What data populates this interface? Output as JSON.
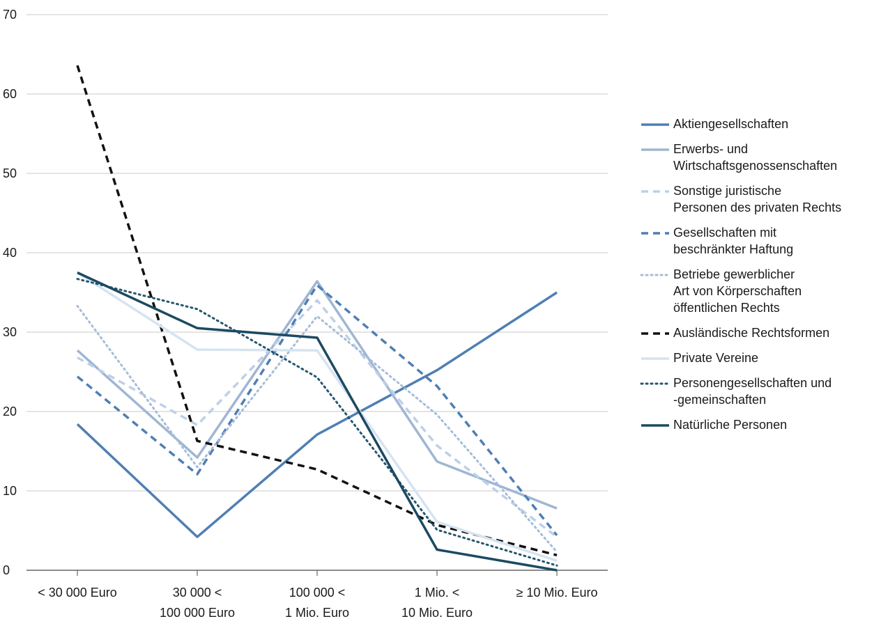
{
  "chart_data": {
    "type": "line",
    "title": "",
    "xlabel": "",
    "ylabel": "",
    "ylim": [
      0,
      70
    ],
    "yticks": [
      0,
      10,
      20,
      30,
      40,
      50,
      60,
      70
    ],
    "grid": true,
    "legend_position": "right",
    "categories": [
      "< 30 000 Euro",
      "30 000 <\n100 000 Euro",
      "100 000 <\n1 Mio. Euro",
      "1 Mio. <\n10 Mio. Euro",
      "≥ 10 Mio. Euro"
    ],
    "series": [
      {
        "name": "Aktiengesellschaften",
        "values": [
          18.4,
          4.2,
          17.1,
          25.2,
          35.0
        ],
        "color": "#4f7fb3",
        "dash": "solid",
        "width": 3.5
      },
      {
        "name": "Erwerbs‑ und\nWirtschaftsgenossenschaften",
        "values": [
          27.7,
          14.2,
          36.4,
          13.7,
          7.8
        ],
        "color": "#9fb6d4",
        "dash": "solid",
        "width": 3.5
      },
      {
        "name": "Sonstige juristische\nPersonen des privaten Rechts",
        "values": [
          26.8,
          18.3,
          34.0,
          15.7,
          4.2
        ],
        "color": "#bed0e6",
        "dash": "dashed",
        "width": 3.5
      },
      {
        "name": "Gesellschaften mit\nbeschränkter Haftung",
        "values": [
          24.4,
          12.1,
          35.9,
          23.2,
          4.4
        ],
        "color": "#4f7fb3",
        "dash": "dashed",
        "width": 3.5
      },
      {
        "name": "Betriebe gewerblicher\nArt von Körperschaften\nöffentlichen Rechts",
        "values": [
          33.3,
          13.0,
          32.0,
          19.6,
          2.3
        ],
        "color": "#a6bcd8",
        "dash": "dotted",
        "width": 3
      },
      {
        "name": "Ausländische Rechtsformen",
        "values": [
          63.6,
          16.3,
          12.7,
          5.7,
          1.9
        ],
        "color": "#111111",
        "dash": "dashed",
        "width": 3.5
      },
      {
        "name": "Private Vereine",
        "values": [
          37.5,
          27.8,
          27.7,
          6.1,
          1.2
        ],
        "color": "#d6e3f1",
        "dash": "solid",
        "width": 3.5
      },
      {
        "name": "Personengesellschaften und\n‑gemeinschaften",
        "values": [
          36.7,
          32.9,
          24.3,
          5.1,
          0.6
        ],
        "color": "#24566f",
        "dash": "dotted",
        "width": 3
      },
      {
        "name": "Natürliche Personen",
        "values": [
          37.5,
          30.5,
          29.3,
          2.6,
          0.0
        ],
        "color": "#1c4a62",
        "dash": "solid",
        "width": 3.5
      }
    ]
  }
}
